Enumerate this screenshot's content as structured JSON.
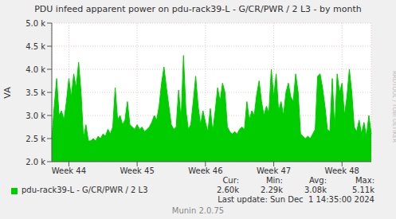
{
  "chart_data": {
    "type": "area",
    "title": "PDU infeed apparent power on pdu-rack39-L - G/CR/PWR / 2 L3 - by month",
    "y_label": "VA",
    "categories": [
      null,
      null,
      null,
      null,
      null,
      null,
      null,
      "Week 44",
      null,
      null,
      null,
      null,
      null,
      null,
      null,
      null,
      null,
      null,
      null,
      null,
      null,
      null,
      null,
      null,
      null,
      null,
      null,
      null,
      null,
      null,
      null,
      null,
      null,
      null,
      null,
      "Week 45",
      null,
      null,
      null,
      null,
      null,
      null,
      null,
      null,
      null,
      null,
      null,
      null,
      null,
      null,
      null,
      null,
      null,
      null,
      null,
      null,
      null,
      null,
      null,
      null,
      null,
      null,
      null,
      "Week 46",
      null,
      null,
      null,
      null,
      null,
      null,
      null,
      null,
      null,
      null,
      null,
      null,
      null,
      null,
      null,
      null,
      null,
      null,
      null,
      null,
      null,
      null,
      null,
      null,
      null,
      null,
      null,
      "Week 47",
      null,
      null,
      null,
      null,
      null,
      null,
      null,
      null,
      null,
      null,
      null,
      null,
      null,
      null,
      null,
      null,
      null,
      null,
      null,
      null,
      null,
      null,
      null,
      null,
      null,
      null,
      null,
      "Week 48",
      null,
      null,
      null,
      null,
      null,
      null,
      null,
      null,
      null,
      null,
      null,
      null
    ],
    "series": [
      {
        "name": "pdu-rack39-L - G/CR/PWR / 2 L3",
        "color": "#00cc00",
        "values": [
          2500,
          3200,
          3800,
          3000,
          3100,
          2900,
          3300,
          3800,
          3400,
          3900,
          3600,
          4150,
          3500,
          2500,
          2800,
          2450,
          2450,
          2500,
          2450,
          2550,
          2500,
          2600,
          2550,
          2700,
          2600,
          2750,
          3600,
          2900,
          3000,
          2800,
          2900,
          3300,
          2800,
          2750,
          2700,
          2800,
          2700,
          2750,
          2650,
          2700,
          2750,
          2850,
          3000,
          2900,
          3200,
          3700,
          4050,
          3600,
          3200,
          2800,
          2700,
          2750,
          3550,
          2900,
          4300,
          3100,
          2700,
          2800,
          3300,
          3850,
          3200,
          2800,
          3100,
          2850,
          2650,
          3150,
          2650,
          3100,
          3600,
          3300,
          3700,
          3500,
          2750,
          2650,
          2600,
          2650,
          2600,
          2700,
          2750,
          2700,
          3300,
          2900,
          3100,
          3000,
          3450,
          3750,
          3300,
          3000,
          3200,
          3050,
          4000,
          3400,
          3900,
          3100,
          3300,
          3000,
          3500,
          3700,
          3400,
          3300,
          3900,
          3500,
          2600,
          2550,
          2500,
          2550,
          2500,
          2600,
          2700,
          3850,
          3900,
          3600,
          3200,
          2700,
          2650,
          3800,
          2700,
          3900,
          3500,
          3700,
          3000,
          3400,
          4000,
          3500,
          2750,
          2650,
          2900,
          2600,
          2850,
          2550,
          3000,
          2600
        ]
      }
    ],
    "ylim": [
      2000,
      5000
    ],
    "yticks": [
      {
        "value": 2000,
        "label": "2.0 k"
      },
      {
        "value": 2500,
        "label": "2.5 k"
      },
      {
        "value": 3000,
        "label": "3.0 k"
      },
      {
        "value": 3500,
        "label": "3.5 k"
      },
      {
        "value": 4000,
        "label": "4.0 k"
      },
      {
        "value": 4500,
        "label": "4.5 k"
      },
      {
        "value": 5000,
        "label": "5.0 k"
      }
    ],
    "grid": true,
    "stats": [
      {
        "label": "Cur:",
        "text": "2.60k"
      },
      {
        "label": "Min:",
        "text": "2.29k"
      },
      {
        "label": "Avg:",
        "text": "3.08k"
      },
      {
        "label": "Max:",
        "text": "5.11k"
      }
    ],
    "footer": "Last update: Sun Dec  1 14:35:00 2024",
    "version": "Munin 2.0.75",
    "watermark": "RRDTOOL / TOBI OETIKER"
  }
}
